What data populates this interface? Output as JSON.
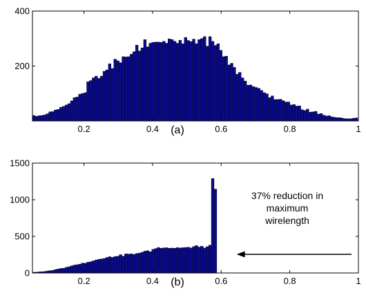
{
  "chart_data": [
    {
      "type": "bar",
      "caption": "(a)",
      "xlim": [
        0.05,
        1.0
      ],
      "ylim": [
        0,
        400
      ],
      "xticks": [
        0.2,
        0.4,
        0.6,
        0.8,
        1
      ],
      "xtick_labels": [
        "0.2",
        "0.4",
        "0.6",
        "0.8",
        "1"
      ],
      "yticks": [
        200,
        400
      ],
      "ytick_labels": [
        "200",
        "400"
      ],
      "grid": false,
      "bar_color": "#0a0a8a",
      "bins": {
        "start": 0.05,
        "width": 0.0079,
        "values": [
          20,
          17,
          19,
          20,
          22,
          26,
          33,
          34,
          40,
          42,
          50,
          53,
          58,
          63,
          73,
          85,
          87,
          97,
          100,
          103,
          143,
          147,
          157,
          163,
          155,
          163,
          181,
          186,
          208,
          191,
          225,
          219,
          212,
          234,
          233,
          234,
          243,
          252,
          276,
          255,
          266,
          296,
          270,
          283,
          286,
          287,
          287,
          286,
          290,
          283,
          299,
          296,
          290,
          283,
          294,
          281,
          304,
          293,
          289,
          298,
          281,
          296,
          300,
          307,
          272,
          307,
          290,
          275,
          281,
          257,
          234,
          236,
          204,
          210,
          195,
          170,
          177,
          157,
          145,
          130,
          131,
          125,
          122,
          119,
          111,
          103,
          99,
          85,
          91,
          78,
          78,
          79,
          74,
          69,
          69,
          58,
          60,
          54,
          55,
          41,
          38,
          43,
          32,
          33,
          35,
          25,
          27,
          21,
          18,
          19,
          15,
          13,
          12,
          12,
          10,
          8,
          8,
          8,
          10,
          11
        ]
      }
    },
    {
      "type": "bar",
      "caption": "(b)",
      "xlim": [
        0.05,
        1.0
      ],
      "ylim": [
        0,
        1500
      ],
      "xticks": [
        0.2,
        0.4,
        0.6,
        0.8,
        1
      ],
      "xtick_labels": [
        "0.2",
        "0.4",
        "0.6",
        "0.8",
        "1"
      ],
      "yticks": [
        0,
        500,
        1000,
        1500
      ],
      "ytick_labels": [
        "0",
        "500",
        "1000",
        "1500"
      ],
      "grid": false,
      "bar_color": "#0a0a8a",
      "annotation": {
        "lines": [
          "37% reduction in",
          "maximum",
          "wirelength"
        ],
        "arrow_from_x": 0.98,
        "arrow_to_x": 0.645,
        "arrow_y": 255
      },
      "bins": {
        "start": 0.05,
        "width": 0.0079,
        "values": [
          10,
          10,
          15,
          18,
          20,
          27,
          32,
          35,
          46,
          54,
          62,
          65,
          77,
          85,
          98,
          108,
          113,
          120,
          135,
          133,
          147,
          153,
          165,
          178,
          187,
          192,
          198,
          212,
          222,
          213,
          224,
          229,
          250,
          230,
          262,
          258,
          262,
          254,
          266,
          272,
          283,
          298,
          304,
          290,
          322,
          334,
          348,
          338,
          343,
          345,
          338,
          340,
          338,
          346,
          341,
          345,
          348,
          352,
          342,
          361,
          374,
          354,
          366,
          341,
          359,
          380,
          1290,
          1145
        ]
      }
    }
  ]
}
